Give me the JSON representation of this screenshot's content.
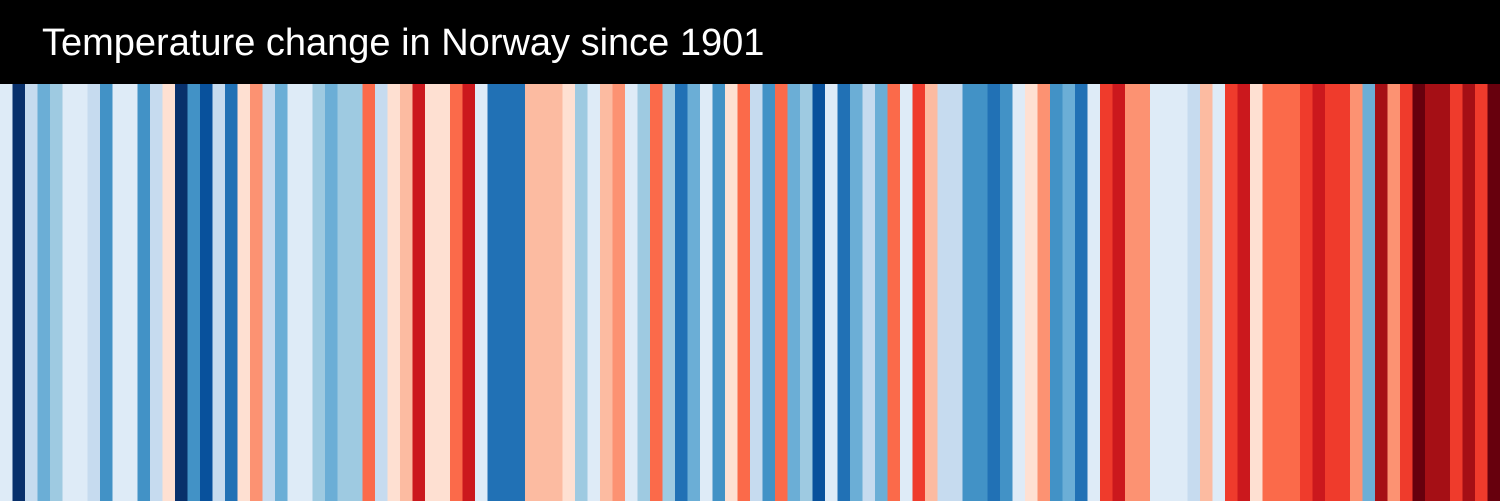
{
  "chart_data": {
    "type": "stripes",
    "title": "Temperature change in Norway since 1901",
    "colors": [
      "#deebf7",
      "#08306b",
      "#c6dbef",
      "#6baed6",
      "#9ecae1",
      "#deebf7",
      "#deebf7",
      "#c6dbef",
      "#4292c6",
      "#deebf7",
      "#deebf7",
      "#4292c6",
      "#c6dbef",
      "#fee0d2",
      "#08306b",
      "#4292c6",
      "#08519c",
      "#c6dbef",
      "#2171b5",
      "#fee0d2",
      "#fc9272",
      "#c6dbef",
      "#6baed6",
      "#deebf7",
      "#deebf7",
      "#9ecae1",
      "#6baed6",
      "#9ecae1",
      "#9ecae1",
      "#fb6a4a",
      "#c6dbef",
      "#fee0d2",
      "#fcbba1",
      "#cb181d",
      "#fee0d2",
      "#fee0d2",
      "#fb6a4a",
      "#cb181d",
      "#deebf7",
      "#2171b5",
      "#2171b5",
      "#2171b5",
      "#fcbba1",
      "#fcbba1",
      "#fcbba1",
      "#fee0d2",
      "#9ecae1",
      "#deebf7",
      "#fcbba1",
      "#fc9272",
      "#deebf7",
      "#9ecae1",
      "#fb6a4a",
      "#9ecae1",
      "#2171b5",
      "#6baed6",
      "#deebf7",
      "#4292c6",
      "#fee0d2",
      "#fb6a4a",
      "#c6dbef",
      "#4292c6",
      "#fb6a4a",
      "#6baed6",
      "#9ecae1",
      "#08519c",
      "#deebf7",
      "#2171b5",
      "#6baed6",
      "#c6dbef",
      "#6baed6",
      "#fb6a4a",
      "#deebf7",
      "#ef3b2c",
      "#fcbba1",
      "#c6dbef",
      "#c6dbef",
      "#4292c6",
      "#4292c6",
      "#2171b5",
      "#4292c6",
      "#deebf7",
      "#fee0d2",
      "#fc9272",
      "#4292c6",
      "#6baed6",
      "#2171b5",
      "#deebf7",
      "#ef3b2c",
      "#cb181d",
      "#fc9272",
      "#fc9272",
      "#deebf7",
      "#deebf7",
      "#deebf7",
      "#c6dbef",
      "#fcbba1",
      "#deebf7",
      "#ef3b2c",
      "#cb181d",
      "#fee0d2",
      "#fb6a4a",
      "#fb6a4a",
      "#fb6a4a",
      "#ef3b2c",
      "#cb181d",
      "#ef3b2c",
      "#ef3b2c",
      "#fc9272",
      "#6baed6",
      "#a50f15",
      "#fc9272",
      "#ef3b2c",
      "#67000d",
      "#a50f15",
      "#a50f15",
      "#ef3b2c",
      "#a50f15",
      "#ef3b2c",
      "#67000d"
    ]
  }
}
